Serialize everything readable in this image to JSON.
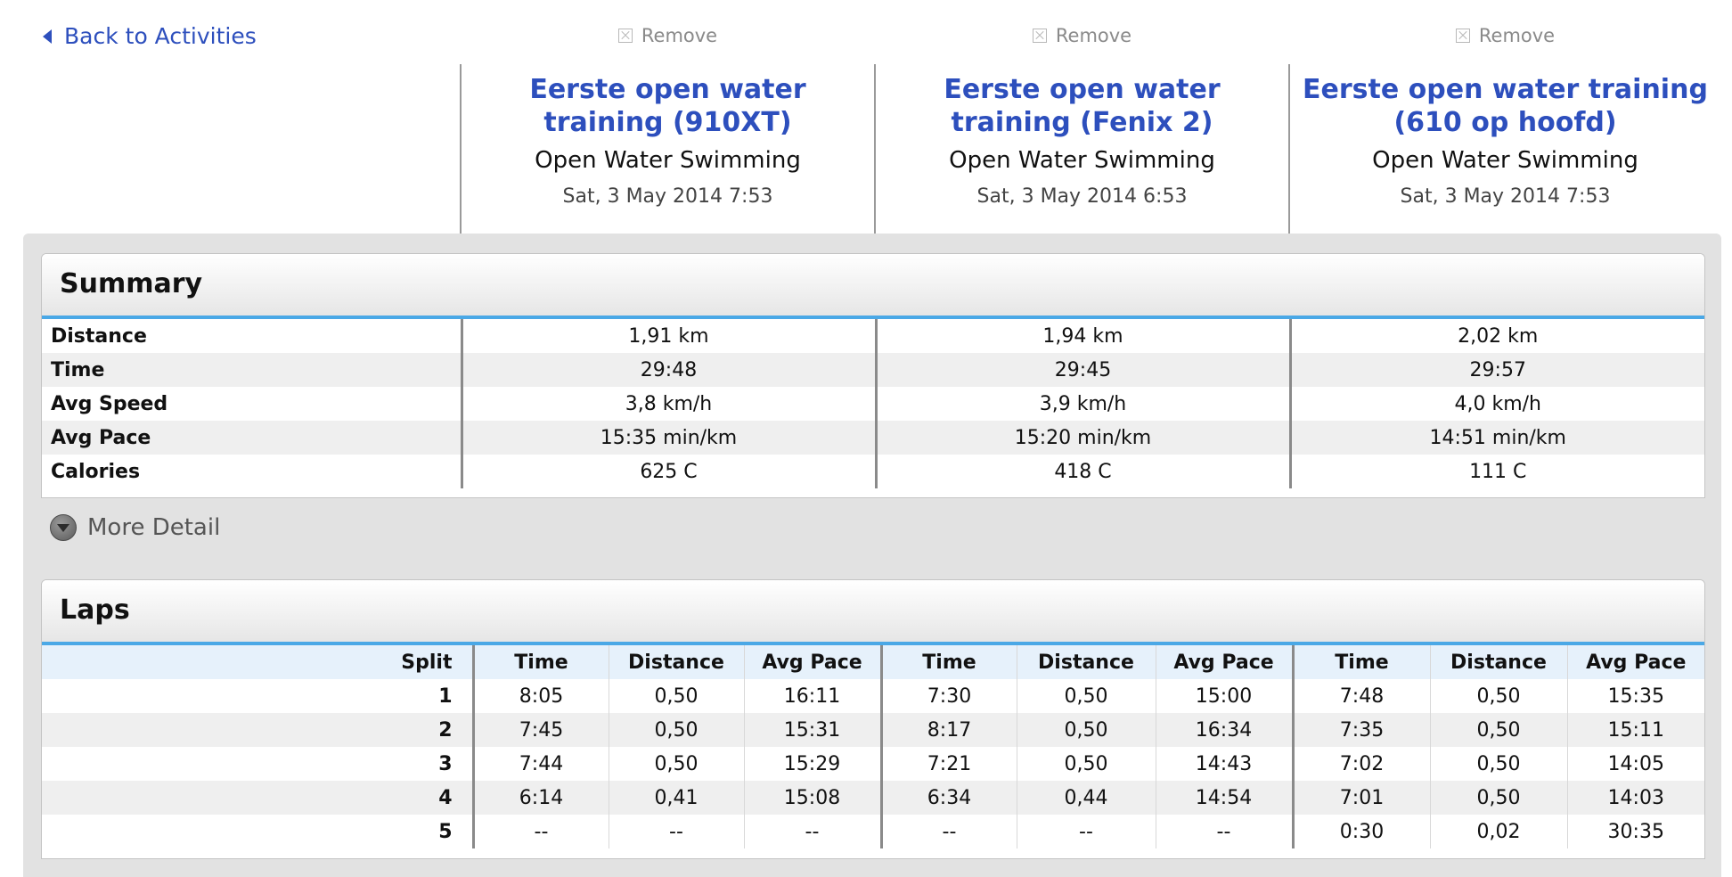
{
  "nav": {
    "back_label": "Back to Activities"
  },
  "activities": [
    {
      "remove_label": "Remove",
      "title": "Eerste open water training (910XT)",
      "type": "Open Water Swimming",
      "date": "Sat, 3 May 2014 7:53"
    },
    {
      "remove_label": "Remove",
      "title": "Eerste open water training (Fenix 2)",
      "type": "Open Water Swimming",
      "date": "Sat, 3 May 2014 6:53"
    },
    {
      "remove_label": "Remove",
      "title": "Eerste open water training (610 op hoofd)",
      "type": "Open Water Swimming",
      "date": "Sat, 3 May 2014 7:53"
    }
  ],
  "summary": {
    "title": "Summary",
    "rows": [
      {
        "label": "Distance",
        "values": [
          "1,91 km",
          "1,94 km",
          "2,02 km"
        ]
      },
      {
        "label": "Time",
        "values": [
          "29:48",
          "29:45",
          "29:57"
        ]
      },
      {
        "label": "Avg Speed",
        "values": [
          "3,8 km/h",
          "3,9 km/h",
          "4,0 km/h"
        ]
      },
      {
        "label": "Avg Pace",
        "values": [
          "15:35 min/km",
          "15:20 min/km",
          "14:51 min/km"
        ]
      },
      {
        "label": "Calories",
        "values": [
          "625 C",
          "418 C",
          "111 C"
        ]
      }
    ],
    "more_detail_label": "More Detail"
  },
  "laps": {
    "title": "Laps",
    "split_header": "Split",
    "group_headers": [
      "Time",
      "Distance",
      "Avg Pace"
    ],
    "rows": [
      {
        "split": "1",
        "values": [
          "8:05",
          "0,50",
          "16:11",
          "7:30",
          "0,50",
          "15:00",
          "7:48",
          "0,50",
          "15:35"
        ]
      },
      {
        "split": "2",
        "values": [
          "7:45",
          "0,50",
          "15:31",
          "8:17",
          "0,50",
          "16:34",
          "7:35",
          "0,50",
          "15:11"
        ]
      },
      {
        "split": "3",
        "values": [
          "7:44",
          "0,50",
          "15:29",
          "7:21",
          "0,50",
          "14:43",
          "7:02",
          "0,50",
          "14:05"
        ]
      },
      {
        "split": "4",
        "values": [
          "6:14",
          "0,41",
          "15:08",
          "6:34",
          "0,44",
          "14:54",
          "7:01",
          "0,50",
          "14:03"
        ]
      },
      {
        "split": "5",
        "values": [
          "--",
          "--",
          "--",
          "--",
          "--",
          "--",
          "0:30",
          "0,02",
          "30:35"
        ]
      }
    ]
  }
}
